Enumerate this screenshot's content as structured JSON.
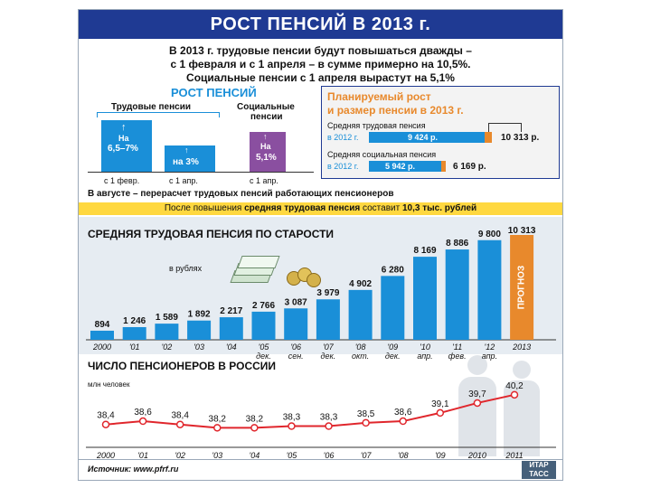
{
  "title": "РОСТ ПЕНСИЙ В 2013 г.",
  "intro": {
    "line1": "В 2013 г. трудовые пенсии будут повышаться дважды –",
    "line2": "с 1 февраля и с 1 апреля – в сумме примерно на 10,5%.",
    "line3": "Социальные пенсии с 1 апреля вырастут на 5,1%"
  },
  "growth": {
    "heading": "РОСТ ПЕНСИЙ",
    "labor_label": "Трудовые пенсии",
    "social_label_1": "Социальные",
    "social_label_2": "пенсии",
    "bars": [
      {
        "text1": "На",
        "text2": "6,5–7%",
        "date": "с 1 февр.",
        "color": "#1a8fd8"
      },
      {
        "text1": "на 3%",
        "text2": "",
        "date": "с 1 апр.",
        "color": "#1a8fd8"
      },
      {
        "text1": "На",
        "text2": "5,1%",
        "date": "с 1 апр.",
        "color": "#8a4fa0"
      }
    ],
    "note": "В августе – перерасчет трудовых пенсий работающих пенсионеров"
  },
  "plan": {
    "title1": "Планируемый рост",
    "title2": "и размер пенсии в 2013 г.",
    "labor_label": "Средняя трудовая пенсия",
    "labor_year": "в 2012 г.",
    "labor_2012": "9 424 р.",
    "labor_2013": "10 313 р.",
    "social_label": "Средняя социальная пенсия",
    "social_year": "в 2012 г.",
    "social_2012": "5 942 р.",
    "social_2013": "6 169 р."
  },
  "notice": {
    "part1": "После повышения ",
    "part2": "средняя трудовая пенсия",
    "part3": " составит ",
    "part4": "10,3 тыс. рублей"
  },
  "colors": {
    "bar": "#1a8fd8",
    "forecast": "#e8892c",
    "line": "#e0262c",
    "navy": "#1f3a93",
    "notice": "#ffd840"
  },
  "chart_data": [
    {
      "type": "bar",
      "title": "СРЕДНЯЯ ТРУДОВАЯ ПЕНСИЯ ПО СТАРОСТИ",
      "unit_label": "в рублях",
      "categories": [
        {
          "l1": "2000",
          "l2": ""
        },
        {
          "l1": "'01",
          "l2": ""
        },
        {
          "l1": "'02",
          "l2": ""
        },
        {
          "l1": "'03",
          "l2": ""
        },
        {
          "l1": "'04",
          "l2": ""
        },
        {
          "l1": "'05",
          "l2": "дек."
        },
        {
          "l1": "'06",
          "l2": "сен."
        },
        {
          "l1": "'07",
          "l2": "дек."
        },
        {
          "l1": "'08",
          "l2": "окт."
        },
        {
          "l1": "'09",
          "l2": "дек."
        },
        {
          "l1": "'10",
          "l2": "апр."
        },
        {
          "l1": "'11",
          "l2": "фев."
        },
        {
          "l1": "'12",
          "l2": "апр."
        },
        {
          "l1": "2013",
          "l2": ""
        }
      ],
      "values": [
        894,
        1246,
        1589,
        1892,
        2217,
        2766,
        3087,
        3979,
        4902,
        6280,
        8169,
        8886,
        9800,
        10313
      ],
      "value_labels": [
        "894",
        "1 246",
        "1 589",
        "1 892",
        "2 217",
        "2 766",
        "3 087",
        "3 979",
        "4 902",
        "6 280",
        "8 169",
        "8 886",
        "9 800",
        "10 313"
      ],
      "forecast_label": "ПРОГНОЗ",
      "ylim": [
        0,
        10313
      ]
    },
    {
      "type": "line",
      "title": "ЧИСЛО ПЕНСИОНЕРОВ В РОССИИ",
      "ylabel": "млн человек",
      "x": [
        "2000",
        "'01",
        "'02",
        "'03",
        "'04",
        "'05",
        "'06",
        "'07",
        "'08",
        "'09",
        "2010",
        "2011"
      ],
      "values": [
        38.4,
        38.6,
        38.4,
        38.2,
        38.2,
        38.3,
        38.3,
        38.5,
        38.6,
        39.1,
        39.7,
        40.2
      ],
      "value_labels": [
        "38,4",
        "38,6",
        "38,4",
        "38,2",
        "38,2",
        "38,3",
        "38,3",
        "38,5",
        "38,6",
        "39,1",
        "39,7",
        "40,2"
      ],
      "ylim": [
        38.0,
        40.3
      ]
    }
  ],
  "source": "Источник: www.pfrf.ru",
  "logo": "ИТАР ТАСС"
}
